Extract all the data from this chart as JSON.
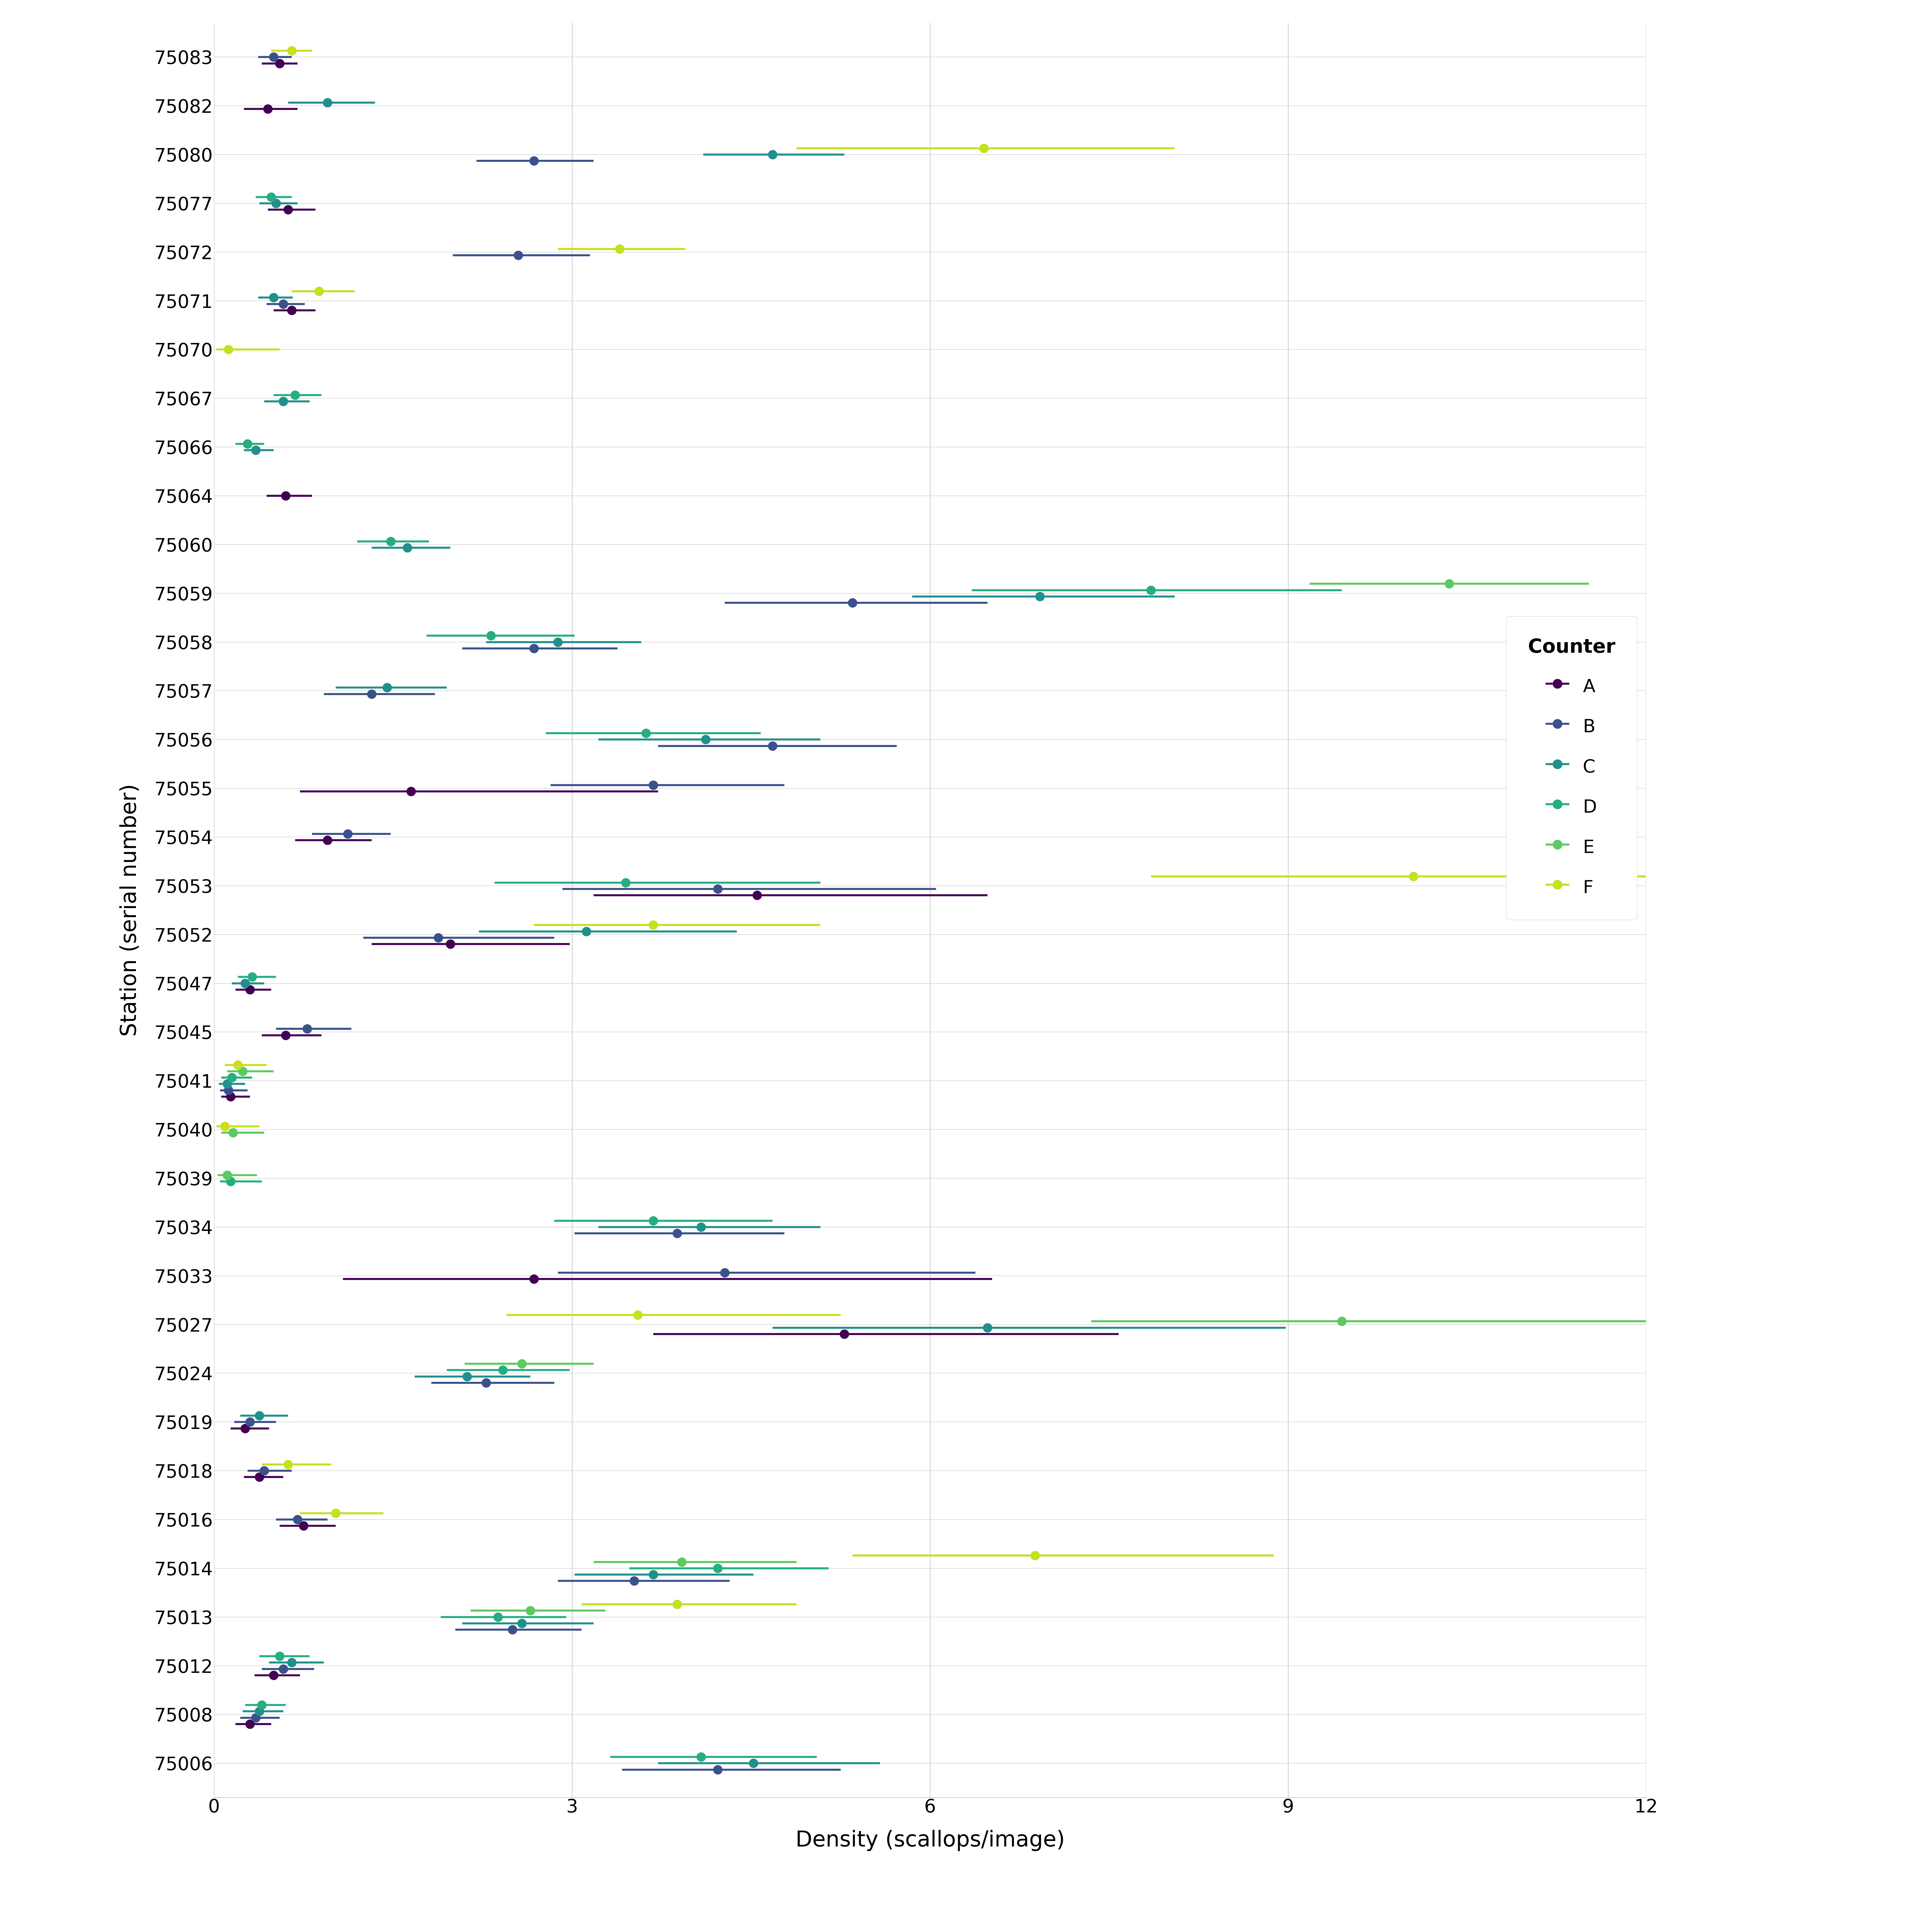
{
  "stations": [
    "75083",
    "75082",
    "75080",
    "75077",
    "75072",
    "75071",
    "75070",
    "75067",
    "75066",
    "75064",
    "75060",
    "75059",
    "75058",
    "75057",
    "75056",
    "75055",
    "75054",
    "75053",
    "75052",
    "75047",
    "75045",
    "75041",
    "75040",
    "75039",
    "75034",
    "75033",
    "75027",
    "75024",
    "75019",
    "75018",
    "75016",
    "75014",
    "75013",
    "75012",
    "75008",
    "75006"
  ],
  "data": {
    "75083": [
      {
        "counter": "A",
        "mean": 0.55,
        "lo": 0.4,
        "hi": 0.7
      },
      {
        "counter": "B",
        "mean": 0.5,
        "lo": 0.37,
        "hi": 0.65
      },
      {
        "counter": "F",
        "mean": 0.65,
        "lo": 0.48,
        "hi": 0.82
      }
    ],
    "75082": [
      {
        "counter": "A",
        "mean": 0.45,
        "lo": 0.25,
        "hi": 0.7
      },
      {
        "counter": "C",
        "mean": 0.95,
        "lo": 0.62,
        "hi": 1.35
      }
    ],
    "75080": [
      {
        "counter": "B",
        "mean": 2.68,
        "lo": 2.2,
        "hi": 3.18
      },
      {
        "counter": "C",
        "mean": 4.68,
        "lo": 4.1,
        "hi": 5.28
      },
      {
        "counter": "F",
        "mean": 6.45,
        "lo": 4.88,
        "hi": 8.05
      }
    ],
    "75077": [
      {
        "counter": "A",
        "mean": 0.62,
        "lo": 0.45,
        "hi": 0.85
      },
      {
        "counter": "C",
        "mean": 0.52,
        "lo": 0.38,
        "hi": 0.7
      },
      {
        "counter": "D",
        "mean": 0.48,
        "lo": 0.35,
        "hi": 0.65
      }
    ],
    "75072": [
      {
        "counter": "B",
        "mean": 2.55,
        "lo": 2.0,
        "hi": 3.15
      },
      {
        "counter": "F",
        "mean": 3.4,
        "lo": 2.88,
        "hi": 3.95
      }
    ],
    "75071": [
      {
        "counter": "A",
        "mean": 0.65,
        "lo": 0.5,
        "hi": 0.85
      },
      {
        "counter": "B",
        "mean": 0.58,
        "lo": 0.44,
        "hi": 0.76
      },
      {
        "counter": "C",
        "mean": 0.5,
        "lo": 0.37,
        "hi": 0.66
      },
      {
        "counter": "F",
        "mean": 0.88,
        "lo": 0.65,
        "hi": 1.18
      }
    ],
    "75070": [
      {
        "counter": "F",
        "mean": 0.12,
        "lo": 0.02,
        "hi": 0.55
      }
    ],
    "75067": [
      {
        "counter": "C",
        "mean": 0.58,
        "lo": 0.42,
        "hi": 0.8
      },
      {
        "counter": "D",
        "mean": 0.68,
        "lo": 0.5,
        "hi": 0.9
      }
    ],
    "75066": [
      {
        "counter": "C",
        "mean": 0.35,
        "lo": 0.25,
        "hi": 0.5
      },
      {
        "counter": "D",
        "mean": 0.28,
        "lo": 0.18,
        "hi": 0.42
      }
    ],
    "75064": [
      {
        "counter": "A",
        "mean": 0.6,
        "lo": 0.44,
        "hi": 0.82
      }
    ],
    "75060": [
      {
        "counter": "C",
        "mean": 1.62,
        "lo": 1.32,
        "hi": 1.98
      },
      {
        "counter": "D",
        "mean": 1.48,
        "lo": 1.2,
        "hi": 1.8
      }
    ],
    "75059": [
      {
        "counter": "B",
        "mean": 5.35,
        "lo": 4.28,
        "hi": 6.48
      },
      {
        "counter": "C",
        "mean": 6.92,
        "lo": 5.85,
        "hi": 8.05
      },
      {
        "counter": "D",
        "mean": 7.85,
        "lo": 6.35,
        "hi": 9.45
      },
      {
        "counter": "E",
        "mean": 10.35,
        "lo": 9.18,
        "hi": 11.52
      }
    ],
    "75058": [
      {
        "counter": "B",
        "mean": 2.68,
        "lo": 2.08,
        "hi": 3.38
      },
      {
        "counter": "C",
        "mean": 2.88,
        "lo": 2.28,
        "hi": 3.58
      },
      {
        "counter": "D",
        "mean": 2.32,
        "lo": 1.78,
        "hi": 3.02
      }
    ],
    "75057": [
      {
        "counter": "B",
        "mean": 1.32,
        "lo": 0.92,
        "hi": 1.85
      },
      {
        "counter": "C",
        "mean": 1.45,
        "lo": 1.02,
        "hi": 1.95
      }
    ],
    "75056": [
      {
        "counter": "B",
        "mean": 4.68,
        "lo": 3.72,
        "hi": 5.72
      },
      {
        "counter": "C",
        "mean": 4.12,
        "lo": 3.22,
        "hi": 5.08
      },
      {
        "counter": "D",
        "mean": 3.62,
        "lo": 2.78,
        "hi": 4.58
      }
    ],
    "75055": [
      {
        "counter": "A",
        "mean": 1.65,
        "lo": 0.72,
        "hi": 3.72
      },
      {
        "counter": "B",
        "mean": 3.68,
        "lo": 2.82,
        "hi": 4.78
      }
    ],
    "75054": [
      {
        "counter": "A",
        "mean": 0.95,
        "lo": 0.68,
        "hi": 1.32
      },
      {
        "counter": "B",
        "mean": 1.12,
        "lo": 0.82,
        "hi": 1.48
      }
    ],
    "75053": [
      {
        "counter": "A",
        "mean": 4.55,
        "lo": 3.18,
        "hi": 6.48
      },
      {
        "counter": "B",
        "mean": 4.22,
        "lo": 2.92,
        "hi": 6.05
      },
      {
        "counter": "D",
        "mean": 3.45,
        "lo": 2.35,
        "hi": 5.08
      },
      {
        "counter": "F",
        "mean": 10.05,
        "lo": 7.85,
        "hi": 12.18
      }
    ],
    "75052": [
      {
        "counter": "A",
        "mean": 1.98,
        "lo": 1.32,
        "hi": 2.98
      },
      {
        "counter": "B",
        "mean": 1.88,
        "lo": 1.25,
        "hi": 2.85
      },
      {
        "counter": "C",
        "mean": 3.12,
        "lo": 2.22,
        "hi": 4.38
      },
      {
        "counter": "F",
        "mean": 3.68,
        "lo": 2.68,
        "hi": 5.08
      }
    ],
    "75047": [
      {
        "counter": "A",
        "mean": 0.3,
        "lo": 0.18,
        "hi": 0.48
      },
      {
        "counter": "C",
        "mean": 0.26,
        "lo": 0.15,
        "hi": 0.42
      },
      {
        "counter": "D",
        "mean": 0.32,
        "lo": 0.2,
        "hi": 0.52
      }
    ],
    "75045": [
      {
        "counter": "A",
        "mean": 0.6,
        "lo": 0.4,
        "hi": 0.9
      },
      {
        "counter": "B",
        "mean": 0.78,
        "lo": 0.52,
        "hi": 1.15
      }
    ],
    "75041": [
      {
        "counter": "A",
        "mean": 0.14,
        "lo": 0.06,
        "hi": 0.3
      },
      {
        "counter": "B",
        "mean": 0.12,
        "lo": 0.05,
        "hi": 0.28
      },
      {
        "counter": "C",
        "mean": 0.11,
        "lo": 0.04,
        "hi": 0.26
      },
      {
        "counter": "D",
        "mean": 0.15,
        "lo": 0.06,
        "hi": 0.32
      },
      {
        "counter": "E",
        "mean": 0.24,
        "lo": 0.11,
        "hi": 0.5
      },
      {
        "counter": "F",
        "mean": 0.2,
        "lo": 0.09,
        "hi": 0.44
      }
    ],
    "75040": [
      {
        "counter": "E",
        "mean": 0.16,
        "lo": 0.06,
        "hi": 0.42
      },
      {
        "counter": "F",
        "mean": 0.09,
        "lo": 0.02,
        "hi": 0.38
      }
    ],
    "75039": [
      {
        "counter": "D",
        "mean": 0.14,
        "lo": 0.05,
        "hi": 0.4
      },
      {
        "counter": "E",
        "mean": 0.11,
        "lo": 0.03,
        "hi": 0.36
      }
    ],
    "75034": [
      {
        "counter": "B",
        "mean": 3.88,
        "lo": 3.02,
        "hi": 4.78
      },
      {
        "counter": "C",
        "mean": 4.08,
        "lo": 3.22,
        "hi": 5.08
      },
      {
        "counter": "D",
        "mean": 3.68,
        "lo": 2.85,
        "hi": 4.68
      }
    ],
    "75033": [
      {
        "counter": "A",
        "mean": 2.68,
        "lo": 1.08,
        "hi": 6.52
      },
      {
        "counter": "B",
        "mean": 4.28,
        "lo": 2.88,
        "hi": 6.38
      }
    ],
    "75027": [
      {
        "counter": "A",
        "mean": 5.28,
        "lo": 3.68,
        "hi": 7.58
      },
      {
        "counter": "C",
        "mean": 6.48,
        "lo": 4.68,
        "hi": 8.98
      },
      {
        "counter": "E",
        "mean": 9.45,
        "lo": 7.35,
        "hi": 12.15
      },
      {
        "counter": "F",
        "mean": 3.55,
        "lo": 2.45,
        "hi": 5.25
      }
    ],
    "75024": [
      {
        "counter": "B",
        "mean": 2.28,
        "lo": 1.82,
        "hi": 2.85
      },
      {
        "counter": "C",
        "mean": 2.12,
        "lo": 1.68,
        "hi": 2.65
      },
      {
        "counter": "D",
        "mean": 2.42,
        "lo": 1.95,
        "hi": 2.98
      },
      {
        "counter": "E",
        "mean": 2.58,
        "lo": 2.1,
        "hi": 3.18
      }
    ],
    "75019": [
      {
        "counter": "A",
        "mean": 0.26,
        "lo": 0.14,
        "hi": 0.46
      },
      {
        "counter": "B",
        "mean": 0.3,
        "lo": 0.17,
        "hi": 0.52
      },
      {
        "counter": "C",
        "mean": 0.38,
        "lo": 0.22,
        "hi": 0.62
      }
    ],
    "75018": [
      {
        "counter": "A",
        "mean": 0.38,
        "lo": 0.25,
        "hi": 0.58
      },
      {
        "counter": "B",
        "mean": 0.42,
        "lo": 0.28,
        "hi": 0.65
      },
      {
        "counter": "F",
        "mean": 0.62,
        "lo": 0.4,
        "hi": 0.98
      }
    ],
    "75016": [
      {
        "counter": "A",
        "mean": 0.75,
        "lo": 0.55,
        "hi": 1.02
      },
      {
        "counter": "B",
        "mean": 0.7,
        "lo": 0.52,
        "hi": 0.95
      },
      {
        "counter": "F",
        "mean": 1.02,
        "lo": 0.72,
        "hi": 1.42
      }
    ],
    "75014": [
      {
        "counter": "B",
        "mean": 3.52,
        "lo": 2.88,
        "hi": 4.32
      },
      {
        "counter": "C",
        "mean": 3.68,
        "lo": 3.02,
        "hi": 4.52
      },
      {
        "counter": "D",
        "mean": 4.22,
        "lo": 3.48,
        "hi": 5.15
      },
      {
        "counter": "E",
        "mean": 3.92,
        "lo": 3.18,
        "hi": 4.88
      },
      {
        "counter": "F",
        "mean": 6.88,
        "lo": 5.35,
        "hi": 8.88
      }
    ],
    "75013": [
      {
        "counter": "B",
        "mean": 2.5,
        "lo": 2.02,
        "hi": 3.08
      },
      {
        "counter": "C",
        "mean": 2.58,
        "lo": 2.08,
        "hi": 3.18
      },
      {
        "counter": "D",
        "mean": 2.38,
        "lo": 1.9,
        "hi": 2.95
      },
      {
        "counter": "E",
        "mean": 2.65,
        "lo": 2.15,
        "hi": 3.28
      },
      {
        "counter": "F",
        "mean": 3.88,
        "lo": 3.08,
        "hi": 4.88
      }
    ],
    "75012": [
      {
        "counter": "A",
        "mean": 0.5,
        "lo": 0.34,
        "hi": 0.72
      },
      {
        "counter": "B",
        "mean": 0.58,
        "lo": 0.4,
        "hi": 0.84
      },
      {
        "counter": "C",
        "mean": 0.65,
        "lo": 0.46,
        "hi": 0.92
      },
      {
        "counter": "D",
        "mean": 0.55,
        "lo": 0.38,
        "hi": 0.8
      }
    ],
    "75008": [
      {
        "counter": "A",
        "mean": 0.3,
        "lo": 0.18,
        "hi": 0.48
      },
      {
        "counter": "B",
        "mean": 0.35,
        "lo": 0.22,
        "hi": 0.55
      },
      {
        "counter": "C",
        "mean": 0.38,
        "lo": 0.24,
        "hi": 0.58
      },
      {
        "counter": "D",
        "mean": 0.4,
        "lo": 0.26,
        "hi": 0.6
      }
    ],
    "75006": [
      {
        "counter": "B",
        "mean": 4.22,
        "lo": 3.42,
        "hi": 5.25
      },
      {
        "counter": "C",
        "mean": 4.52,
        "lo": 3.72,
        "hi": 5.58
      },
      {
        "counter": "D",
        "mean": 4.08,
        "lo": 3.32,
        "hi": 5.05
      }
    ]
  },
  "counter_order": [
    "A",
    "B",
    "C",
    "D",
    "E",
    "F"
  ],
  "counter_colors": {
    "A": "#440154",
    "B": "#3B518B",
    "C": "#21908D",
    "D": "#27AD81",
    "E": "#5DC963",
    "F": "#C7E020"
  },
  "xlabel": "Density (scallops/image)",
  "ylabel": "Station (serial number)",
  "legend_title": "Counter",
  "xlim": [
    0,
    12
  ],
  "xticks": [
    0,
    3,
    6,
    9,
    12
  ],
  "background_color": "#FFFFFF",
  "grid_color": "#D3D3D3"
}
